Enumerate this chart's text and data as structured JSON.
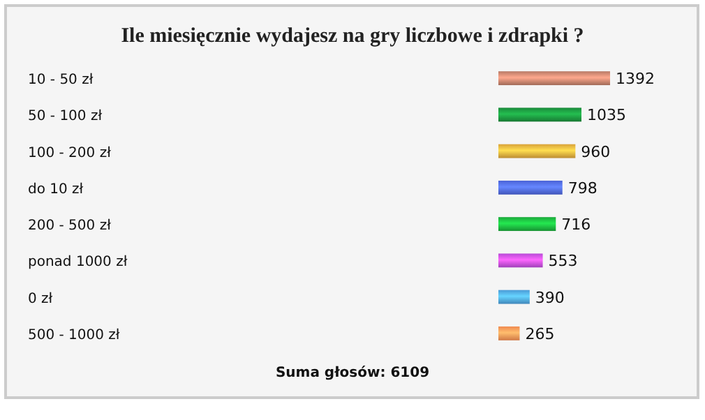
{
  "chart_data": {
    "type": "bar",
    "orientation": "horizontal",
    "title": "Ile miesięcznie wydajesz na gry liczbowe i zdrapki ?",
    "categories": [
      "10 - 50 zł",
      "50 - 100 zł",
      "100 - 200 zł",
      "do 10 zł",
      "200 - 500 zł",
      "ponad 1000 zł",
      "0 zł",
      "500 - 1000 zł"
    ],
    "values": [
      1392,
      1035,
      960,
      798,
      716,
      553,
      390,
      265
    ],
    "colors": [
      "#b87a66",
      "#1a8a3a",
      "#d9a23a",
      "#4a62d6",
      "#1aa83a",
      "#b84ad6",
      "#4a9ad6",
      "#f08a50"
    ],
    "data_labels": true,
    "annotations": [
      "Suma głosów: 6109"
    ]
  }
}
